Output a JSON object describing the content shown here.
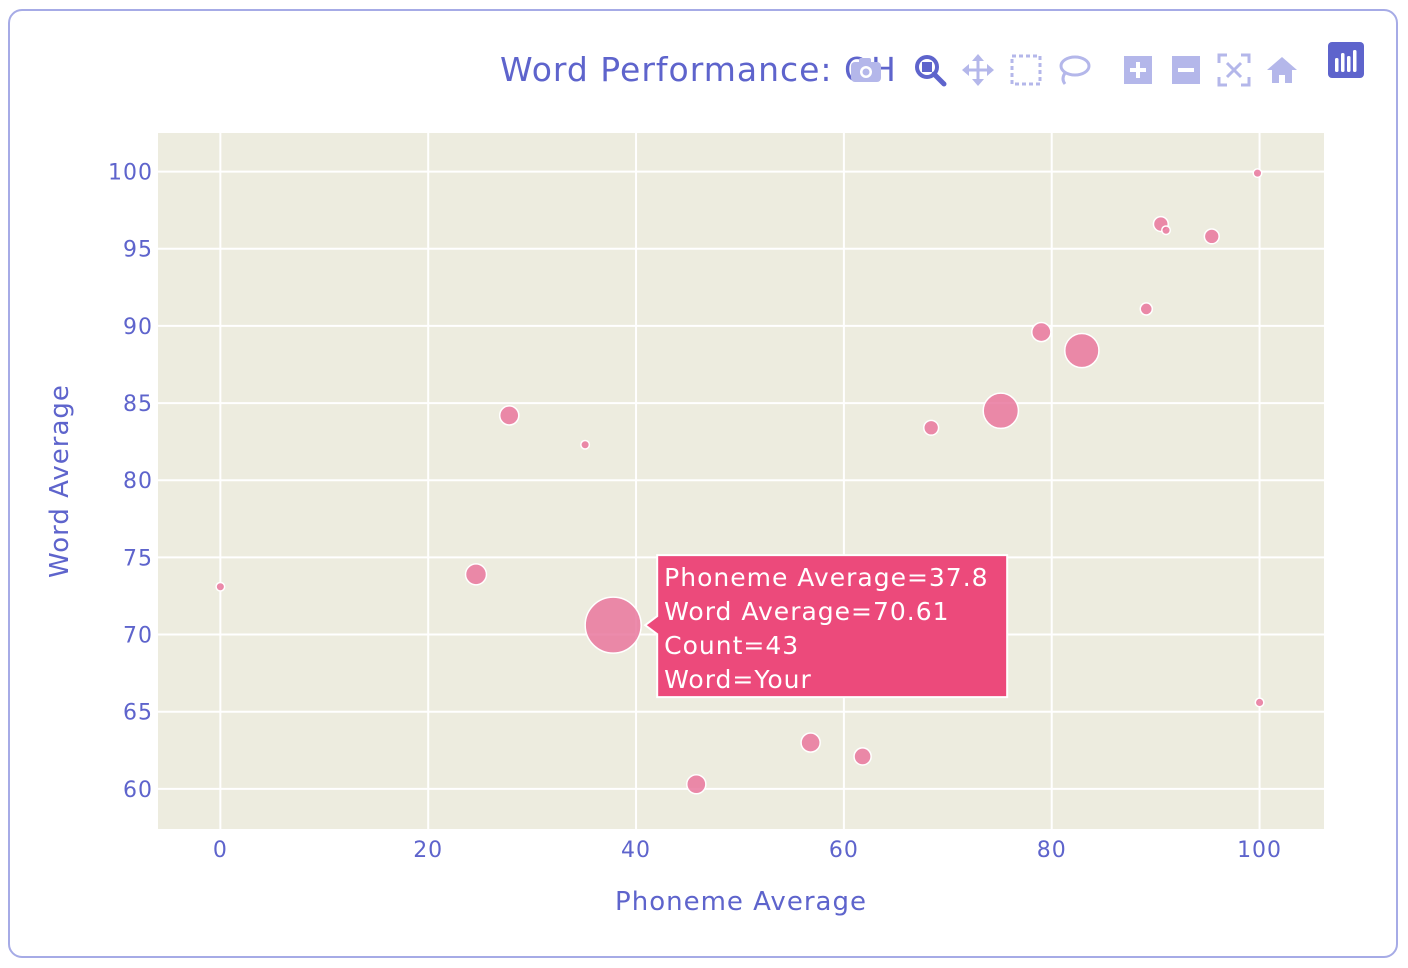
{
  "chart_data": {
    "type": "scatter",
    "title": "Word Performance: OH",
    "xlabel": "Phoneme Average",
    "ylabel": "Word Average",
    "xlim": [
      -6,
      106.2
    ],
    "ylim": [
      57.4,
      102.5
    ],
    "xticks": [
      0,
      20,
      40,
      60,
      80,
      100
    ],
    "yticks": [
      60,
      65,
      70,
      75,
      80,
      85,
      90,
      95,
      100
    ],
    "grid": true,
    "marker_color": "#e9779e",
    "points": [
      {
        "x": 37.8,
        "y": 70.61,
        "count": 43,
        "word": "Your"
      },
      {
        "x": 0,
        "y": 73.1,
        "count": 1
      },
      {
        "x": 24.6,
        "y": 73.9,
        "count": 6
      },
      {
        "x": 27.8,
        "y": 84.2,
        "count": 5
      },
      {
        "x": 35.1,
        "y": 82.3,
        "count": 1
      },
      {
        "x": 45.8,
        "y": 60.3,
        "count": 5
      },
      {
        "x": 56.8,
        "y": 63.0,
        "count": 5
      },
      {
        "x": 61.8,
        "y": 62.1,
        "count": 4
      },
      {
        "x": 68.4,
        "y": 83.4,
        "count": 3
      },
      {
        "x": 75.1,
        "y": 84.5,
        "count": 17
      },
      {
        "x": 79.0,
        "y": 89.6,
        "count": 5
      },
      {
        "x": 82.9,
        "y": 88.4,
        "count": 16
      },
      {
        "x": 89.1,
        "y": 91.1,
        "count": 2
      },
      {
        "x": 90.5,
        "y": 96.6,
        "count": 3
      },
      {
        "x": 91.0,
        "y": 96.2,
        "count": 1
      },
      {
        "x": 95.4,
        "y": 95.8,
        "count": 3
      },
      {
        "x": 99.8,
        "y": 99.9,
        "count": 1
      },
      {
        "x": 100,
        "y": 65.6,
        "count": 1
      }
    ],
    "hover": {
      "lines": [
        "Phoneme Average=37.8",
        "Word Average=70.61",
        "Count=43",
        "Word=Your"
      ],
      "color": "#ec4a7b"
    }
  },
  "modebar": [
    "camera-icon",
    "zoom-icon",
    "pan-icon",
    "box-select-icon",
    "lasso-icon",
    "zoom-in-icon",
    "zoom-out-icon",
    "autoscale-icon",
    "reset-icon",
    "plotly-logo-icon"
  ],
  "colors": {
    "accent": "#5e64cc",
    "plot_bg": "#edecdf",
    "border": "#a6abe6"
  }
}
